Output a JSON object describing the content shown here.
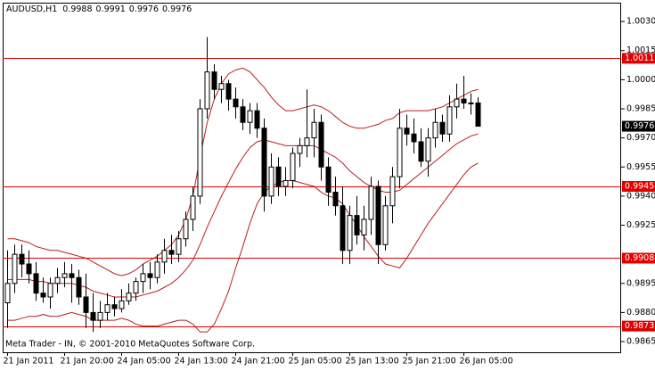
{
  "chart_data": {
    "type": "candlestick",
    "symbol": "AUDUSD,H1",
    "watermark": "Meta Trader - IN, © 2001-2010 MetaQuotes Software Corp.",
    "categories": [
      "21 Jan 2011",
      null,
      null,
      null,
      null,
      null,
      null,
      null,
      "21 Jan 20:00",
      null,
      null,
      null,
      null,
      null,
      null,
      null,
      "24 Jan 05:00",
      null,
      null,
      null,
      null,
      null,
      null,
      null,
      "24 Jan 13:00",
      null,
      null,
      null,
      null,
      null,
      null,
      null,
      "24 Jan 21:00",
      null,
      null,
      null,
      null,
      null,
      null,
      null,
      "25 Jan 05:00",
      null,
      null,
      null,
      null,
      null,
      null,
      null,
      "25 Jan 13:00",
      null,
      null,
      null,
      null,
      null,
      null,
      null,
      "25 Jan 21:00",
      null,
      null,
      null,
      null,
      null,
      null,
      null,
      "26 Jan 05:00",
      null,
      null
    ],
    "open": [
      0.9885,
      0.9895,
      0.991,
      0.9905,
      0.99,
      0.989,
      0.9888,
      0.9895,
      0.9898,
      0.99,
      0.9898,
      0.9888,
      0.988,
      0.9876,
      0.988,
      0.9884,
      0.9882,
      0.9886,
      0.989,
      0.9896,
      0.99,
      0.9898,
      0.9906,
      0.9912,
      0.991,
      0.9918,
      0.9928,
      0.994,
      0.9985,
      1.0004,
      0.9995,
      0.9998,
      0.999,
      0.9986,
      0.9978,
      0.9984,
      0.9975,
      0.994,
      0.9955,
      0.9945,
      0.9948,
      0.9962,
      0.9966,
      0.997,
      0.9978,
      0.9955,
      0.9942,
      0.9935,
      0.9912,
      0.993,
      0.992,
      0.9928,
      0.9945,
      0.9915,
      0.9935,
      0.995,
      0.9975,
      0.9972,
      0.9968,
      0.9958,
      0.997,
      0.9978,
      0.9972,
      0.9986,
      0.999,
      0.9988,
      0.9988
    ],
    "high": [
      0.9912,
      0.9915,
      0.9915,
      0.9912,
      0.9906,
      0.9898,
      0.9898,
      0.9903,
      0.9906,
      0.9905,
      0.9902,
      0.99,
      0.989,
      0.9886,
      0.989,
      0.9888,
      0.9892,
      0.9895,
      0.9898,
      0.9905,
      0.9906,
      0.991,
      0.9918,
      0.992,
      0.9922,
      0.9932,
      0.9945,
      0.999,
      1.0022,
      1.0008,
      1.0002,
      1.0,
      0.9996,
      0.999,
      0.9988,
      0.9988,
      0.998,
      0.9962,
      0.996,
      0.9955,
      0.9965,
      0.997,
      0.9995,
      0.9985,
      0.9982,
      0.996,
      0.995,
      0.9945,
      0.9935,
      0.994,
      0.9935,
      0.995,
      0.9948,
      0.994,
      0.9955,
      0.9985,
      0.9982,
      0.998,
      0.9975,
      0.9975,
      0.9985,
      0.9982,
      0.9992,
      0.9998,
      1.0002,
      0.9993,
      0.9991
    ],
    "low": [
      0.9872,
      0.989,
      0.9898,
      0.9895,
      0.9886,
      0.9885,
      0.9882,
      0.989,
      0.9893,
      0.9885,
      0.9884,
      0.9872,
      0.987,
      0.9872,
      0.9876,
      0.9878,
      0.988,
      0.9884,
      0.9886,
      0.989,
      0.9892,
      0.9895,
      0.99,
      0.9905,
      0.9906,
      0.9914,
      0.9922,
      0.9936,
      0.998,
      0.999,
      0.9988,
      0.9984,
      0.998,
      0.9974,
      0.9972,
      0.997,
      0.9932,
      0.9936,
      0.994,
      0.994,
      0.9944,
      0.9955,
      0.996,
      0.996,
      0.9948,
      0.9935,
      0.993,
      0.9905,
      0.9905,
      0.9915,
      0.9912,
      0.992,
      0.9905,
      0.9912,
      0.9926,
      0.9944,
      0.9966,
      0.9962,
      0.9955,
      0.995,
      0.9965,
      0.9968,
      0.9968,
      0.998,
      0.9985,
      0.9982,
      0.9976
    ],
    "close": [
      0.9895,
      0.991,
      0.9905,
      0.99,
      0.989,
      0.9888,
      0.9895,
      0.9898,
      0.99,
      0.9898,
      0.9888,
      0.988,
      0.9876,
      0.988,
      0.9884,
      0.9882,
      0.9886,
      0.989,
      0.9896,
      0.99,
      0.9898,
      0.9906,
      0.9912,
      0.991,
      0.9918,
      0.9928,
      0.994,
      0.9985,
      1.0004,
      0.9995,
      0.9998,
      0.999,
      0.9986,
      0.9978,
      0.9984,
      0.9975,
      0.994,
      0.9955,
      0.9945,
      0.9948,
      0.9962,
      0.9966,
      0.997,
      0.9978,
      0.9955,
      0.9942,
      0.9935,
      0.9912,
      0.993,
      0.992,
      0.9928,
      0.9945,
      0.9915,
      0.9935,
      0.995,
      0.9975,
      0.9972,
      0.9968,
      0.9958,
      0.997,
      0.9978,
      0.9972,
      0.9986,
      0.999,
      0.9988,
      0.9988,
      0.9976
    ],
    "bands": {
      "color": "#b22222",
      "upper": [
        0.9918,
        0.9918,
        0.9917,
        0.9916,
        0.9914,
        0.9913,
        0.9912,
        0.9912,
        0.9911,
        0.991,
        0.9909,
        0.9908,
        0.9906,
        0.9904,
        0.9902,
        0.99,
        0.9899,
        0.99,
        0.9902,
        0.9905,
        0.9907,
        0.9909,
        0.9912,
        0.9915,
        0.992,
        0.9928,
        0.994,
        0.996,
        0.9978,
        0.999,
        0.9998,
        1.0003,
        1.0005,
        1.0006,
        1.0004,
        1.0,
        0.9996,
        0.9991,
        0.9987,
        0.9984,
        0.9984,
        0.9985,
        0.9986,
        0.9987,
        0.9986,
        0.9984,
        0.9981,
        0.9978,
        0.9976,
        0.9975,
        0.9975,
        0.9976,
        0.9977,
        0.9979,
        0.998,
        0.9983,
        0.9984,
        0.9984,
        0.9984,
        0.9984,
        0.9985,
        0.9986,
        0.9988,
        0.999,
        0.9992,
        0.9994,
        0.9995
      ],
      "middle": [
        0.9897,
        0.9897,
        0.9897,
        0.9897,
        0.9896,
        0.9896,
        0.9895,
        0.9895,
        0.9895,
        0.9895,
        0.9894,
        0.9893,
        0.9891,
        0.989,
        0.9889,
        0.9888,
        0.9888,
        0.9888,
        0.9888,
        0.9889,
        0.989,
        0.9891,
        0.9893,
        0.9895,
        0.9898,
        0.9902,
        0.9907,
        0.9915,
        0.9924,
        0.9932,
        0.994,
        0.9947,
        0.9954,
        0.996,
        0.9965,
        0.9968,
        0.9969,
        0.9968,
        0.9967,
        0.9966,
        0.9966,
        0.9966,
        0.9966,
        0.9966,
        0.9964,
        0.9962,
        0.996,
        0.9957,
        0.9953,
        0.995,
        0.9947,
        0.9945,
        0.9943,
        0.9942,
        0.9942,
        0.9943,
        0.9946,
        0.9949,
        0.9952,
        0.9955,
        0.9958,
        0.9961,
        0.9964,
        0.9967,
        0.9969,
        0.9971,
        0.9972
      ],
      "lower": [
        0.9876,
        0.9876,
        0.9877,
        0.9878,
        0.9878,
        0.9879,
        0.9878,
        0.9878,
        0.9879,
        0.988,
        0.9879,
        0.9878,
        0.9876,
        0.9876,
        0.9876,
        0.9876,
        0.9877,
        0.9876,
        0.9874,
        0.9873,
        0.9873,
        0.9873,
        0.9874,
        0.9875,
        0.9876,
        0.9876,
        0.9874,
        0.987,
        0.987,
        0.9874,
        0.9882,
        0.9891,
        0.9903,
        0.9914,
        0.9926,
        0.9936,
        0.9942,
        0.9945,
        0.9947,
        0.9948,
        0.9948,
        0.9947,
        0.9946,
        0.9945,
        0.9942,
        0.994,
        0.9939,
        0.9936,
        0.993,
        0.9925,
        0.9919,
        0.9914,
        0.9909,
        0.9905,
        0.9904,
        0.9903,
        0.9908,
        0.9914,
        0.992,
        0.9926,
        0.9931,
        0.9936,
        0.9941,
        0.9946,
        0.9951,
        0.9955,
        0.9957
      ]
    },
    "bull_color": "#ffffff",
    "bear_color": "#000000",
    "levels": [
      1.0011,
      0.9945,
      0.9908,
      0.9873
    ],
    "level_color": "#e00000",
    "current_price": 0.9976,
    "ylim": [
      0.98595,
      1.00397
    ],
    "yticks": [
      {
        "value": 1.003,
        "label": "1.0030"
      },
      1.0015,
      {
        "value": 1.0,
        "label": "1.0000"
      },
      0.9985,
      {
        "value": 0.997,
        "label": "0.9970"
      },
      0.9955,
      {
        "value": 0.994,
        "label": "0.9940"
      },
      0.9925,
      0.9895,
      {
        "value": 0.988,
        "label": "0.9880"
      },
      0.9865
    ],
    "grid": false
  }
}
